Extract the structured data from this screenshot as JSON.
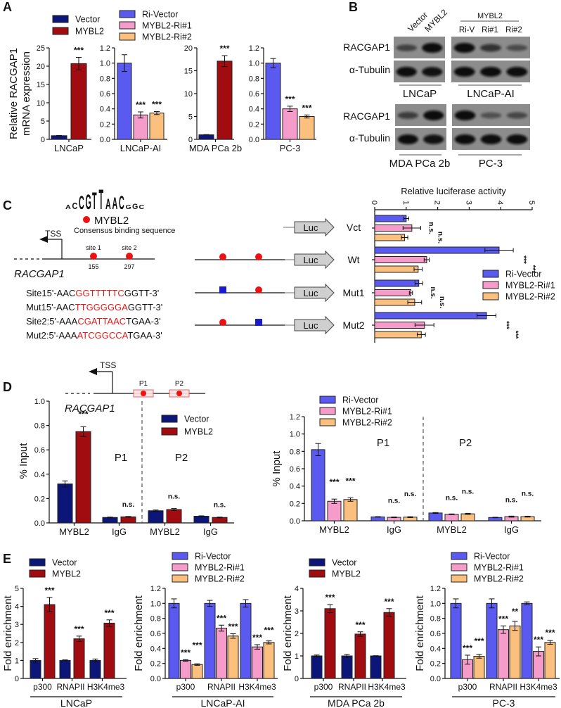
{
  "panel_letters": [
    "A",
    "B",
    "C",
    "D",
    "E"
  ],
  "panel_b": {
    "col_labels_left": [
      "Vector",
      "MYBL2"
    ],
    "group_label_right": "MYBL2",
    "col_labels_right": [
      "Ri-V",
      "Ri#1",
      "Ri#2"
    ],
    "row_labels": [
      "RACGAP1",
      "α-Tubulin"
    ],
    "cell_lines": [
      "LNCaP",
      "LNCaP-AI",
      "MDA PCa 2b",
      "PC-3"
    ]
  },
  "panel_c": {
    "logo_letters": "ACCGTTAACGGC",
    "factor": "MYBL2",
    "consensus": "Consensus binding sequence",
    "tss": "TSS",
    "gene": "RACGAP1",
    "sites": [
      {
        "label": "site 1",
        "pos": "155"
      },
      {
        "label": "site 2",
        "pos": "297"
      }
    ],
    "sequences": [
      {
        "name": "Site1",
        "prefix": "5'-AAC",
        "core": "GGTTTTTC",
        "suffix": "GGTT-3'"
      },
      {
        "name": "Mut1",
        "prefix": "5'-AAC",
        "core": "TTGGGGGA",
        "suffix": "GGTT-3'"
      },
      {
        "name": "Site2:",
        "prefix": "5'-AAA",
        "core": "CGATTAAC",
        "suffix": "TGAA-3'"
      },
      {
        "name": "Mut2:",
        "prefix": "5'-AAA",
        "core": "ATCGGCCA",
        "suffix": "TGAA-3'"
      }
    ],
    "reporter": "Luc",
    "constructs": [
      "Vct",
      "Wt",
      "Mut1",
      "Mut2"
    ],
    "colors": {
      "site": "#ee1111",
      "mutant": "#1a1ad0",
      "sequence_core": "#e51b1b"
    }
  },
  "panel_d": {
    "tss": "TSS",
    "gene": "RACGAP1",
    "regions": [
      "P1",
      "P2"
    ]
  },
  "colors": {
    "Vector": "#0c1578",
    "MYBL2": "#a00c10",
    "Ri-Vector": "#5a5af0",
    "MYBL2-Ri#1": "#f59ccb",
    "MYBL2-Ri#2": "#fbc07e"
  },
  "chart_data": [
    {
      "panel": "A",
      "type": "bar",
      "ylabel": [
        "Relative RACGAP1",
        "mRNA expression"
      ],
      "categories": [
        "LNCaP"
      ],
      "ylim": [
        0,
        25
      ],
      "yticks": [
        "0",
        "5",
        "10",
        "15",
        "20",
        "25"
      ],
      "series": [
        {
          "name": "Vector",
          "color": "#0c1578",
          "values": [
            1.0
          ],
          "errors": [
            0.05
          ],
          "sig": [
            ""
          ]
        },
        {
          "name": "MYBL2",
          "color": "#a00c10",
          "values": [
            20.7
          ],
          "errors": [
            1.7
          ],
          "sig": [
            "***"
          ]
        }
      ]
    },
    {
      "panel": "A",
      "type": "bar",
      "categories": [
        "LNCaP-AI"
      ],
      "ylim": [
        0,
        1.2
      ],
      "yticks": [
        "0.0",
        "0.2",
        "0.4",
        "0.6",
        "0.8",
        "1.0",
        "1.2"
      ],
      "series": [
        {
          "name": "Ri-Vector",
          "color": "#5a5af0",
          "values": [
            1.0
          ],
          "errors": [
            0.11
          ],
          "sig": [
            ""
          ]
        },
        {
          "name": "MYBL2-Ri#1",
          "color": "#f59ccb",
          "values": [
            0.32
          ],
          "errors": [
            0.04
          ],
          "sig": [
            "***"
          ]
        },
        {
          "name": "MYBL2-Ri#2",
          "color": "#fbc07e",
          "values": [
            0.345
          ],
          "errors": [
            0.02
          ],
          "sig": [
            "***"
          ]
        }
      ]
    },
    {
      "panel": "A",
      "type": "bar",
      "categories": [
        "MDA PCa 2b"
      ],
      "ylim": [
        0,
        20
      ],
      "yticks": [
        "0",
        "5",
        "10",
        "15",
        "20"
      ],
      "series": [
        {
          "name": "Vector",
          "color": "#0c1578",
          "values": [
            1.0
          ],
          "errors": [
            0.05
          ],
          "sig": [
            ""
          ]
        },
        {
          "name": "MYBL2",
          "color": "#a00c10",
          "values": [
            17.1
          ],
          "errors": [
            1.2
          ],
          "sig": [
            "***"
          ]
        }
      ]
    },
    {
      "panel": "A",
      "type": "bar",
      "categories": [
        "PC-3"
      ],
      "ylim": [
        0,
        1.2
      ],
      "yticks": [
        "0.0",
        "0.2",
        "0.4",
        "0.6",
        "0.8",
        "1.0",
        "1.2"
      ],
      "series": [
        {
          "name": "Ri-Vector",
          "color": "#5a5af0",
          "values": [
            1.0
          ],
          "errors": [
            0.06
          ],
          "sig": [
            ""
          ]
        },
        {
          "name": "MYBL2-Ri#1",
          "color": "#f59ccb",
          "values": [
            0.4
          ],
          "errors": [
            0.035
          ],
          "sig": [
            "***"
          ]
        },
        {
          "name": "MYBL2-Ri#2",
          "color": "#fbc07e",
          "values": [
            0.3
          ],
          "errors": [
            0.02
          ],
          "sig": [
            "***"
          ]
        }
      ]
    },
    {
      "panel": "C",
      "type": "bar",
      "orientation": "horizontal",
      "title": "Relative luciferase activity",
      "categories": [
        "Vct",
        "Wt",
        "Mut1",
        "Mut2"
      ],
      "xlim": [
        0,
        5
      ],
      "xticks": [
        "0",
        "1",
        "2",
        "3",
        "4",
        "5"
      ],
      "legend": "right",
      "series": [
        {
          "name": "Ri-Vector",
          "color": "#5a5af0",
          "values": [
            1.0,
            3.95,
            1.4,
            3.55
          ],
          "errors": [
            0.08,
            0.45,
            0.12,
            0.3
          ],
          "sig": [
            "",
            "",
            "",
            ""
          ]
        },
        {
          "name": "MYBL2-Ri#1",
          "color": "#f59ccb",
          "values": [
            1.18,
            1.65,
            1.15,
            1.58
          ],
          "errors": [
            0.28,
            0.08,
            0.05,
            0.3
          ],
          "sig": [
            "n.s.",
            "***",
            "n.s.",
            "***"
          ]
        },
        {
          "name": "MYBL2-Ri#2",
          "color": "#fbc07e",
          "values": [
            0.95,
            1.38,
            1.27,
            1.48
          ],
          "errors": [
            0.1,
            0.13,
            0.22,
            0.13
          ],
          "sig": [
            "n.s.",
            "***",
            "n.s.",
            "***"
          ]
        }
      ]
    },
    {
      "panel": "D",
      "type": "bar",
      "ylabel": [
        "% Input"
      ],
      "categories": [
        "MYBL2",
        "IgG",
        "MYBL2",
        "IgG"
      ],
      "region_labels": [
        "P1",
        "P2"
      ],
      "ylim": [
        0,
        1.0
      ],
      "yticks": [
        "0.0",
        "0.2",
        "0.4",
        "0.6",
        "0.8",
        "1.0"
      ],
      "series": [
        {
          "name": "Vector",
          "color": "#0c1578",
          "values": [
            0.32,
            0.045,
            0.1,
            0.055
          ],
          "errors": [
            0.025,
            0.003,
            0.006,
            0.003
          ],
          "sig": [
            "",
            "",
            "",
            ""
          ]
        },
        {
          "name": "MYBL2",
          "color": "#a00c10",
          "values": [
            0.75,
            0.05,
            0.11,
            0.045
          ],
          "errors": [
            0.04,
            0.003,
            0.008,
            0.003
          ],
          "sig": [
            "***",
            "n.s.",
            "n.s.",
            "n.s."
          ]
        }
      ]
    },
    {
      "panel": "D",
      "type": "bar",
      "ylabel": [
        "% Input"
      ],
      "categories": [
        "MYBL2",
        "IgG",
        "MYBL2",
        "IgG"
      ],
      "region_labels": [
        "P1",
        "P2"
      ],
      "ylim": [
        0,
        1.2
      ],
      "yticks": [
        "0.0",
        "0.2",
        "0.4",
        "0.6",
        "0.8",
        "1.0",
        "1.2"
      ],
      "series": [
        {
          "name": "Ri-Vector",
          "color": "#5a5af0",
          "values": [
            0.82,
            0.045,
            0.09,
            0.038
          ],
          "errors": [
            0.07,
            0.003,
            0.005,
            0.003
          ],
          "sig": [
            "",
            "",
            "",
            ""
          ]
        },
        {
          "name": "MYBL2-Ri#1",
          "color": "#f59ccb",
          "values": [
            0.225,
            0.04,
            0.075,
            0.048
          ],
          "errors": [
            0.025,
            0.004,
            0.004,
            0.006
          ],
          "sig": [
            "***",
            "n.s.",
            "n.s.",
            "n.s."
          ]
        },
        {
          "name": "MYBL2-Ri#2",
          "color": "#fbc07e",
          "values": [
            0.245,
            0.042,
            0.08,
            0.048
          ],
          "errors": [
            0.02,
            0.005,
            0.006,
            0.005
          ],
          "sig": [
            "***",
            "n.s.",
            "n.s.",
            "n.s."
          ]
        }
      ]
    },
    {
      "panel": "E",
      "type": "bar",
      "ylabel": [
        "Fold enrichment"
      ],
      "group_label": "LNCaP",
      "categories": [
        "p300",
        "RNAPII",
        "H3K4me3"
      ],
      "ylim": [
        0,
        5
      ],
      "yticks": [
        "0",
        "1",
        "2",
        "3",
        "4",
        "5"
      ],
      "series": [
        {
          "name": "Vector",
          "color": "#0c1578",
          "values": [
            1,
            1,
            1
          ],
          "errors": [
            0.1,
            0.03,
            0.08
          ],
          "sig": [
            "",
            "",
            ""
          ]
        },
        {
          "name": "MYBL2",
          "color": "#a00c10",
          "values": [
            4.1,
            2.2,
            3.07
          ],
          "errors": [
            0.4,
            0.15,
            0.18
          ],
          "sig": [
            "***",
            "***",
            "***"
          ]
        }
      ]
    },
    {
      "panel": "E",
      "type": "bar",
      "ylabel": [
        "Fold enrichment"
      ],
      "group_label": "LNCaP-AI",
      "categories": [
        "p300",
        "RNAPII",
        "H3K4me3"
      ],
      "ylim": [
        0,
        1.2
      ],
      "yticks": [
        "0.0",
        "0.2",
        "0.4",
        "0.6",
        "0.8",
        "1.0",
        "1.2"
      ],
      "series": [
        {
          "name": "Ri-Vector",
          "color": "#5a5af0",
          "values": [
            1,
            1,
            1
          ],
          "errors": [
            0.06,
            0.04,
            0.05
          ],
          "sig": [
            "",
            "",
            ""
          ]
        },
        {
          "name": "MYBL2-Ri#1",
          "color": "#f59ccb",
          "values": [
            0.24,
            0.67,
            0.42
          ],
          "errors": [
            0.01,
            0.04,
            0.03
          ],
          "sig": [
            "***",
            "***",
            "***"
          ]
        },
        {
          "name": "MYBL2-Ri#2",
          "color": "#fbc07e",
          "values": [
            0.185,
            0.565,
            0.48
          ],
          "errors": [
            0.01,
            0.03,
            0.02
          ],
          "sig": [
            "***",
            "***",
            "***"
          ]
        }
      ]
    },
    {
      "panel": "E",
      "type": "bar",
      "ylabel": [
        "Fold enrichment"
      ],
      "group_label": "MDA PCa 2b",
      "categories": [
        "p300",
        "RNAPII",
        "H3K4me3"
      ],
      "ylim": [
        0,
        4
      ],
      "yticks": [
        "0",
        "1",
        "2",
        "3",
        "4"
      ],
      "series": [
        {
          "name": "Vector",
          "color": "#0c1578",
          "values": [
            1,
            1,
            1
          ],
          "errors": [
            0.04,
            0.07,
            0.01
          ],
          "sig": [
            "",
            "",
            ""
          ]
        },
        {
          "name": "MYBL2",
          "color": "#a00c10",
          "values": [
            3.1,
            1.97,
            2.93
          ],
          "errors": [
            0.18,
            0.1,
            0.17
          ],
          "sig": [
            "***",
            "***",
            "***"
          ]
        }
      ]
    },
    {
      "panel": "E",
      "type": "bar",
      "ylabel": [
        "Fold enrichment"
      ],
      "group_label": "PC-3",
      "categories": [
        "p300",
        "RNAPII",
        "H3K4me3"
      ],
      "ylim": [
        0,
        1.2
      ],
      "yticks": [
        "0.0",
        "0.2",
        "0.4",
        "0.6",
        "0.8",
        "1.0",
        "1.2"
      ],
      "series": [
        {
          "name": "Ri-Vector",
          "color": "#5a5af0",
          "values": [
            1,
            1,
            1
          ],
          "errors": [
            0.06,
            0.06,
            0.02
          ],
          "sig": [
            "",
            "",
            ""
          ]
        },
        {
          "name": "MYBL2-Ri#1",
          "color": "#f59ccb",
          "values": [
            0.25,
            0.65,
            0.36
          ],
          "errors": [
            0.06,
            0.05,
            0.06
          ],
          "sig": [
            "***",
            "***",
            "***"
          ]
        },
        {
          "name": "MYBL2-Ri#2",
          "color": "#fbc07e",
          "values": [
            0.295,
            0.7,
            0.48
          ],
          "errors": [
            0.025,
            0.06,
            0.025
          ],
          "sig": [
            "***",
            "**",
            "***"
          ]
        }
      ]
    }
  ]
}
